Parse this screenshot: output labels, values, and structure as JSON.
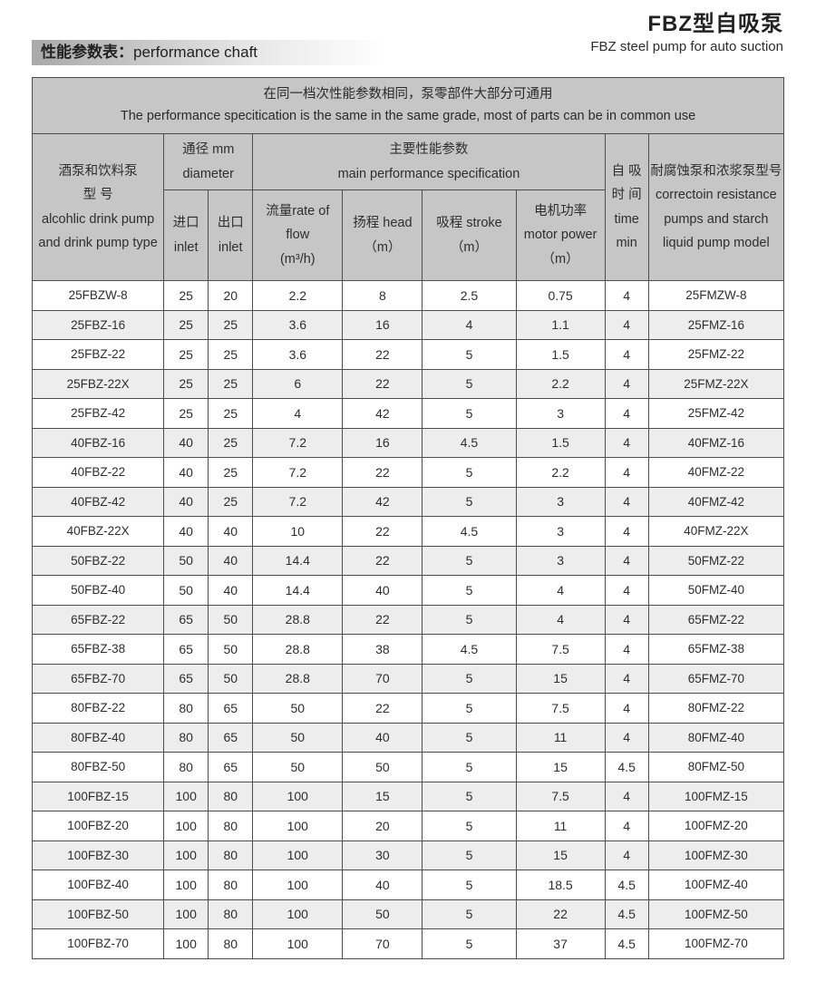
{
  "page": {
    "title_cn": "FBZ型自吸泵",
    "title_en": "FBZ steel pump for auto suction"
  },
  "section": {
    "heading_cn": "性能参数表：",
    "heading_en": "performance chaft"
  },
  "table": {
    "note_cn": "在同一档次性能参数相同，泵零部件大部分可通用",
    "note_en": "The performance specitication is the same in the same grade, most of parts can be in common use",
    "headers": {
      "model_cn1": "酒泵和饮料泵",
      "model_cn2": "型  号",
      "model_en1": "alcohlic drink pump",
      "model_en2": "and drink pump type",
      "diameter_cn": "通径 mm",
      "diameter_en": "diameter",
      "inlet_cn": "进口",
      "inlet_en": "inlet",
      "outlet_cn": "出口",
      "outlet_en": "inlet",
      "main_cn": "主要性能参数",
      "main_en": "main performance specification",
      "flow_label": "流量rate of flow",
      "flow_unit": "(m³/h)",
      "head_label": "扬程 head",
      "head_unit": "（m）",
      "stroke_label": "吸程 stroke",
      "stroke_unit": "（m）",
      "power_cn": "电机功率",
      "power_en": "motor power",
      "power_unit": "（m）",
      "time_cn1": "自  吸",
      "time_cn2": "时  间",
      "time_en1": "time",
      "time_en2": "min",
      "fmz_cn": "耐腐蚀泵和浓浆泵型号",
      "fmz_en1": "correctoin resistance",
      "fmz_en2": "pumps and starch",
      "fmz_en3": "liquid pump model"
    },
    "rows": [
      {
        "model": "25FBZW-8",
        "inlet": "25",
        "outlet": "20",
        "flow": "2.2",
        "head": "8",
        "stroke": "2.5",
        "power": "0.75",
        "time": "4",
        "fmz": "25FMZW-8"
      },
      {
        "model": "25FBZ-16",
        "inlet": "25",
        "outlet": "25",
        "flow": "3.6",
        "head": "16",
        "stroke": "4",
        "power": "1.1",
        "time": "4",
        "fmz": "25FMZ-16"
      },
      {
        "model": "25FBZ-22",
        "inlet": "25",
        "outlet": "25",
        "flow": "3.6",
        "head": "22",
        "stroke": "5",
        "power": "1.5",
        "time": "4",
        "fmz": "25FMZ-22"
      },
      {
        "model": "25FBZ-22X",
        "inlet": "25",
        "outlet": "25",
        "flow": "6",
        "head": "22",
        "stroke": "5",
        "power": "2.2",
        "time": "4",
        "fmz": "25FMZ-22X"
      },
      {
        "model": "25FBZ-42",
        "inlet": "25",
        "outlet": "25",
        "flow": "4",
        "head": "42",
        "stroke": "5",
        "power": "3",
        "time": "4",
        "fmz": "25FMZ-42"
      },
      {
        "model": "40FBZ-16",
        "inlet": "40",
        "outlet": "25",
        "flow": "7.2",
        "head": "16",
        "stroke": "4.5",
        "power": "1.5",
        "time": "4",
        "fmz": "40FMZ-16"
      },
      {
        "model": "40FBZ-22",
        "inlet": "40",
        "outlet": "25",
        "flow": "7.2",
        "head": "22",
        "stroke": "5",
        "power": "2.2",
        "time": "4",
        "fmz": "40FMZ-22"
      },
      {
        "model": "40FBZ-42",
        "inlet": "40",
        "outlet": "25",
        "flow": "7.2",
        "head": "42",
        "stroke": "5",
        "power": "3",
        "time": "4",
        "fmz": "40FMZ-42"
      },
      {
        "model": "40FBZ-22X",
        "inlet": "40",
        "outlet": "40",
        "flow": "10",
        "head": "22",
        "stroke": "4.5",
        "power": "3",
        "time": "4",
        "fmz": "40FMZ-22X"
      },
      {
        "model": "50FBZ-22",
        "inlet": "50",
        "outlet": "40",
        "flow": "14.4",
        "head": "22",
        "stroke": "5",
        "power": "3",
        "time": "4",
        "fmz": "50FMZ-22"
      },
      {
        "model": "50FBZ-40",
        "inlet": "50",
        "outlet": "40",
        "flow": "14.4",
        "head": "40",
        "stroke": "5",
        "power": "4",
        "time": "4",
        "fmz": "50FMZ-40"
      },
      {
        "model": "65FBZ-22",
        "inlet": "65",
        "outlet": "50",
        "flow": "28.8",
        "head": "22",
        "stroke": "5",
        "power": "4",
        "time": "4",
        "fmz": "65FMZ-22"
      },
      {
        "model": "65FBZ-38",
        "inlet": "65",
        "outlet": "50",
        "flow": "28.8",
        "head": "38",
        "stroke": "4.5",
        "power": "7.5",
        "time": "4",
        "fmz": "65FMZ-38"
      },
      {
        "model": "65FBZ-70",
        "inlet": "65",
        "outlet": "50",
        "flow": "28.8",
        "head": "70",
        "stroke": "5",
        "power": "15",
        "time": "4",
        "fmz": "65FMZ-70"
      },
      {
        "model": "80FBZ-22",
        "inlet": "80",
        "outlet": "65",
        "flow": "50",
        "head": "22",
        "stroke": "5",
        "power": "7.5",
        "time": "4",
        "fmz": "80FMZ-22"
      },
      {
        "model": "80FBZ-40",
        "inlet": "80",
        "outlet": "65",
        "flow": "50",
        "head": "40",
        "stroke": "5",
        "power": "11",
        "time": "4",
        "fmz": "80FMZ-40"
      },
      {
        "model": "80FBZ-50",
        "inlet": "80",
        "outlet": "65",
        "flow": "50",
        "head": "50",
        "stroke": "5",
        "power": "15",
        "time": "4.5",
        "fmz": "80FMZ-50"
      },
      {
        "model": "100FBZ-15",
        "inlet": "100",
        "outlet": "80",
        "flow": "100",
        "head": "15",
        "stroke": "5",
        "power": "7.5",
        "time": "4",
        "fmz": "100FMZ-15"
      },
      {
        "model": "100FBZ-20",
        "inlet": "100",
        "outlet": "80",
        "flow": "100",
        "head": "20",
        "stroke": "5",
        "power": "11",
        "time": "4",
        "fmz": "100FMZ-20"
      },
      {
        "model": "100FBZ-30",
        "inlet": "100",
        "outlet": "80",
        "flow": "100",
        "head": "30",
        "stroke": "5",
        "power": "15",
        "time": "4",
        "fmz": "100FMZ-30"
      },
      {
        "model": "100FBZ-40",
        "inlet": "100",
        "outlet": "80",
        "flow": "100",
        "head": "40",
        "stroke": "5",
        "power": "18.5",
        "time": "4.5",
        "fmz": "100FMZ-40"
      },
      {
        "model": "100FBZ-50",
        "inlet": "100",
        "outlet": "80",
        "flow": "100",
        "head": "50",
        "stroke": "5",
        "power": "22",
        "time": "4.5",
        "fmz": "100FMZ-50"
      },
      {
        "model": "100FBZ-70",
        "inlet": "100",
        "outlet": "80",
        "flow": "100",
        "head": "70",
        "stroke": "5",
        "power": "37",
        "time": "4.5",
        "fmz": "100FMZ-70"
      }
    ]
  }
}
